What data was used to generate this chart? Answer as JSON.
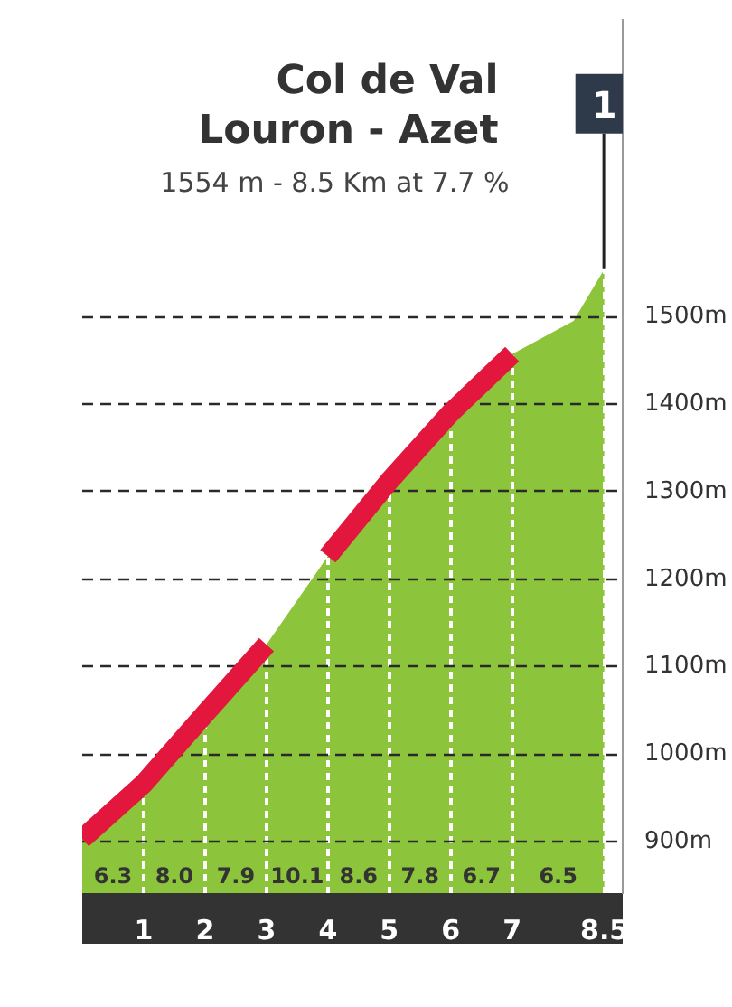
{
  "chart_data": {
    "type": "area",
    "title": "Col de Val Louron - Azet",
    "subtitle": "1554 m - 8.5 Km at 7.7 %",
    "xlim": [
      0,
      8.8
    ],
    "xticks": [
      1,
      2,
      3,
      4,
      5,
      6,
      7,
      8.5
    ],
    "ylim": [
      840,
      1840
    ],
    "yticks": [
      {
        "value": 900,
        "label": "900m"
      },
      {
        "value": 1000,
        "label": "1000m"
      },
      {
        "value": 1100,
        "label": "1100m"
      },
      {
        "value": 1200,
        "label": "1200m"
      },
      {
        "value": 1300,
        "label": "1300m"
      },
      {
        "value": 1400,
        "label": "1400m"
      },
      {
        "value": 1500,
        "label": "1500m"
      }
    ],
    "grid": true,
    "series": [
      {
        "color": "#8cc43c",
        "x": [
          0,
          1,
          2,
          3,
          4,
          5,
          6,
          7,
          8,
          8.5
        ],
        "values": [
          903,
          966,
          1046,
          1125,
          1226,
          1312,
          1390,
          1457,
          1495,
          1554
        ]
      },
      {
        "type": "line",
        "color": "#e3173e",
        "x": [
          0,
          1,
          2,
          3
        ],
        "values": [
          903,
          966,
          1046,
          1125
        ]
      },
      {
        "type": "line",
        "color": "#e3173e",
        "x": [
          4,
          5,
          6,
          7
        ],
        "values": [
          1226,
          1312,
          1390,
          1457
        ]
      }
    ],
    "annotations": [
      {
        "text": "1",
        "x": 8.5,
        "y": 1554
      },
      "6.3",
      "8.0",
      "7.9",
      "10.1",
      "8.6",
      "7.8",
      "6.7",
      "6.5"
    ]
  }
}
